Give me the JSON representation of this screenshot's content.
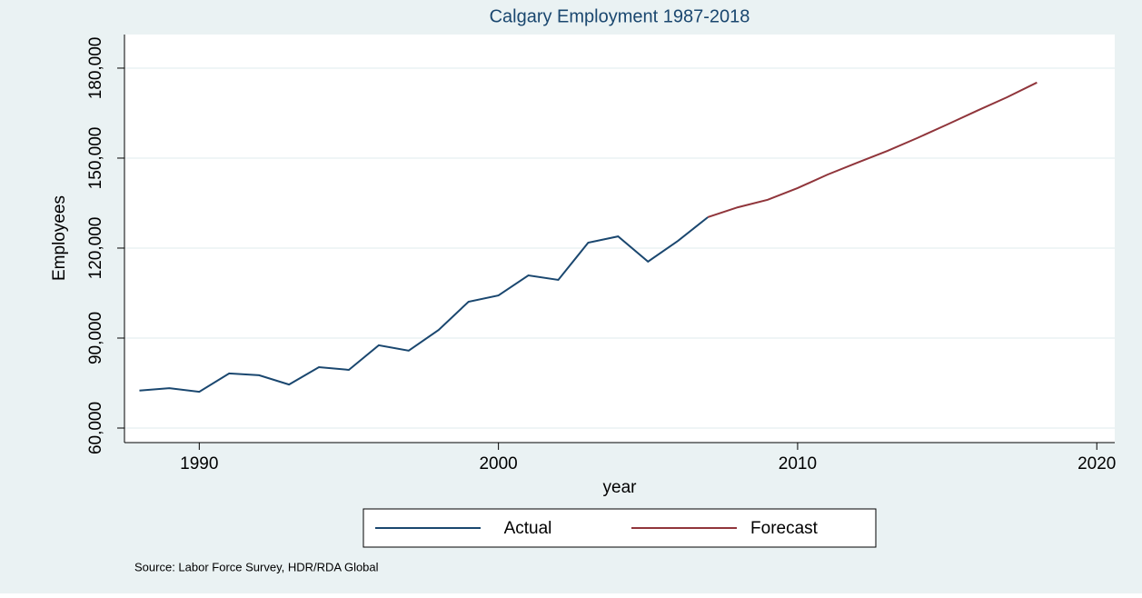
{
  "chart_data": {
    "type": "line",
    "title": "Calgary Employment 1987-2018",
    "xlabel": "year",
    "ylabel": "Employees",
    "source": "Source: Labor Force Survey, HDR/RDA Global",
    "series": [
      {
        "name": "Actual",
        "color": "#1a476f",
        "x": [
          1988,
          1989,
          1990,
          1991,
          1992,
          1993,
          1994,
          1995,
          1996,
          1997,
          1998,
          1999,
          2000,
          2001,
          2002,
          2003,
          2004,
          2005,
          2006,
          2007
        ],
        "values": [
          72500,
          73300,
          72100,
          78200,
          77600,
          74500,
          80300,
          79400,
          87600,
          85800,
          92700,
          102100,
          104200,
          110900,
          109400,
          121800,
          123900,
          115500,
          122400,
          130300
        ]
      },
      {
        "name": "Forecast",
        "color": "#90353b",
        "x": [
          2007,
          2008,
          2009,
          2010,
          2011,
          2012,
          2013,
          2014,
          2015,
          2016,
          2017,
          2018
        ],
        "values": [
          130300,
          133600,
          136100,
          140000,
          144500,
          148500,
          152400,
          156700,
          161200,
          165800,
          170300,
          175200
        ]
      }
    ],
    "xlim": [
      1987.5,
      2020.6
    ],
    "xticks": [
      1990,
      2000,
      2010,
      2020
    ],
    "ylim": [
      55150,
      191200
    ],
    "yticks": [
      {
        "value": 60000,
        "label": "60,000"
      },
      {
        "value": 90000,
        "label": "90,000"
      },
      {
        "value": 120000,
        "label": "120,000"
      },
      {
        "value": 150000,
        "label": "150,000"
      },
      {
        "value": 180000,
        "label": "180,000"
      }
    ],
    "grid": true
  }
}
